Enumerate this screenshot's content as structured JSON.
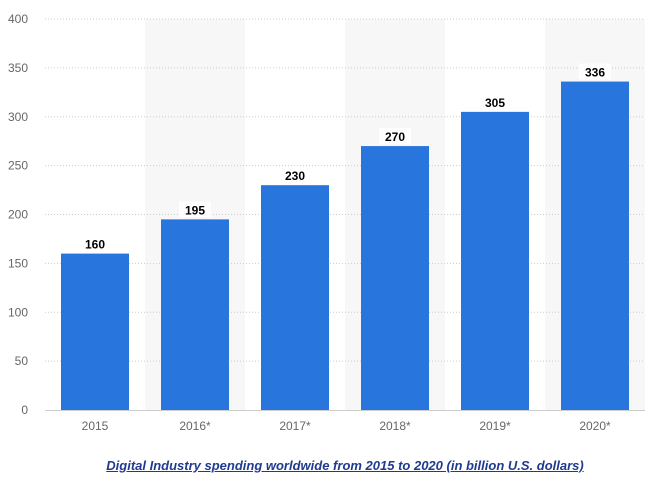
{
  "chart_data": {
    "type": "bar",
    "categories": [
      "2015",
      "2016*",
      "2017*",
      "2018*",
      "2019*",
      "2020*"
    ],
    "values": [
      160,
      195,
      230,
      270,
      305,
      336
    ],
    "data_labels": [
      "160",
      "195",
      "230",
      "270",
      "305",
      "336"
    ],
    "title": "Digital Industry spending worldwide from 2015 to 2020 (in billion U.S. dollars)",
    "xlabel": "",
    "ylabel": "",
    "ylim": [
      0,
      400
    ],
    "yticks": [
      0,
      50,
      100,
      150,
      200,
      250,
      300,
      350,
      400
    ],
    "grid": true,
    "legend": "none",
    "bar_color": "#2875dd",
    "band_color": "#f7f7f7",
    "grid_color": "#cccccc",
    "title_color": "#1f3a8f"
  }
}
